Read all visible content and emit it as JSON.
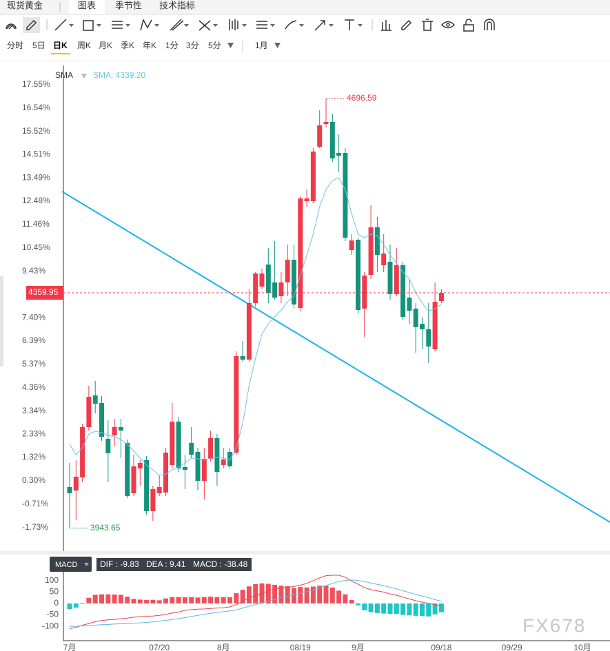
{
  "header": {
    "symbol": "现货黄金",
    "tabs": [
      "图表",
      "季节性",
      "技术指标"
    ]
  },
  "periods": [
    "分时",
    "5日",
    "日K",
    "周K",
    "月K",
    "季K",
    "年K",
    "1分",
    "3分",
    "5分"
  ],
  "range": "1月",
  "watermark": "FX678",
  "chart_data": [
    {
      "type": "candlestick",
      "categories": [
        "7月",
        null,
        null,
        null,
        null,
        null,
        null,
        null,
        null,
        null,
        null,
        null,
        null,
        null,
        "07/20",
        null,
        null,
        null,
        null,
        null,
        null,
        null,
        null,
        null,
        "8月",
        null,
        null,
        null,
        null,
        null,
        null,
        null,
        null,
        null,
        null,
        null,
        "08/19",
        null,
        null,
        null,
        null,
        null,
        null,
        null,
        null,
        "9月",
        null,
        null,
        null,
        null,
        null,
        null,
        null,
        null,
        null,
        null,
        null,
        null,
        "09/18",
        null,
        null,
        null,
        null,
        null,
        null,
        null,
        null,
        null,
        null,
        "09/29",
        null,
        null,
        null,
        null,
        null,
        null,
        null,
        null,
        null,
        null,
        "10月"
      ],
      "open": [
        0.03,
        -0.12,
        0.45,
        2.64,
        4.02,
        3.69,
        2.13,
        2.28,
        2.64,
        1.95,
        -0.24,
        0.84,
        1.2,
        -1.02,
        -0.24,
        -0.21,
        0.99,
        2.88,
        0.9,
        1.95,
        1.56,
        0.3,
        1.26,
        2.16,
        0.99,
        1.56,
        1.53,
        5.73,
        5.58,
        8.04,
        8.76,
        9.72,
        8.94,
        8.34,
        8.94,
        9.93,
        7.83,
        12.48,
        12.48,
        14.85,
        15.84,
        15.93,
        14.58,
        14.58,
        10.35,
        10.8,
        7.8,
        9.27,
        11.34,
        9.69,
        9.84,
        8.43,
        9.69,
        8.28,
        7.8,
        7.14,
        6.9,
        6.03,
        8.13,
        null,
        null,
        null,
        null,
        null,
        null,
        null,
        null,
        null,
        null,
        null,
        null,
        null,
        null,
        null,
        null,
        null,
        null,
        null,
        null,
        null,
        null
      ],
      "high": [
        1.08,
        1.2,
        2.79,
        4.44,
        4.65,
        3.99,
        2.94,
        3.0,
        3.0,
        2.1,
        1.44,
        1.2,
        1.38,
        0.09,
        0.54,
        1.74,
        3.69,
        3.09,
        1.44,
        2.64,
        1.74,
        1.74,
        2.49,
        2.34,
        1.74,
        1.74,
        5.94,
        6.39,
        8.64,
        9.39,
        9.54,
        10.44,
        10.74,
        9.39,
        10.59,
        10.59,
        12.69,
        12.99,
        14.79,
        16.44,
        16.95,
        16.29,
        15.39,
        14.79,
        11.04,
        10.89,
        9.39,
        12.3,
        11.79,
        11.04,
        10.59,
        10.44,
        9.84,
        9.09,
        8.04,
        7.44,
        8.04,
        8.94,
        8.64,
        null,
        null,
        null,
        null,
        null,
        null,
        null,
        null,
        null,
        null,
        null,
        null,
        null,
        null,
        null,
        null,
        null,
        null,
        null,
        null,
        null,
        null
      ],
      "low": [
        -1.76,
        -1.41,
        0.24,
        2.49,
        3.24,
        2.04,
        0.24,
        1.8,
        1.29,
        -0.45,
        -0.36,
        0.09,
        -1.17,
        -1.44,
        -0.36,
        -0.36,
        0.84,
        0.69,
        -0.06,
        1.29,
        -0.12,
        -0.51,
        1.14,
        0.09,
        0.84,
        0.84,
        1.44,
        5.49,
        5.49,
        7.89,
        8.64,
        8.04,
        8.19,
        8.04,
        8.34,
        7.8,
        7.68,
        12.24,
        12.39,
        14.79,
        15.69,
        14.19,
        13.74,
        10.74,
        10.14,
        7.59,
        6.54,
        9.09,
        9.39,
        9.39,
        8.19,
        8.34,
        7.29,
        7.14,
        5.88,
        6.03,
        5.43,
        5.94,
        8.04,
        null,
        null,
        null,
        null,
        null,
        null,
        null,
        null,
        null,
        null,
        null,
        null,
        null,
        null,
        null,
        null,
        null,
        null,
        null,
        null,
        null,
        null
      ],
      "close": [
        -0.24,
        0.48,
        2.64,
        3.96,
        3.66,
        2.22,
        1.5,
        2.64,
        2.49,
        -0.36,
        0.93,
        1.08,
        -1.02,
        -0.06,
        0.03,
        1.53,
        2.88,
        0.84,
        0.78,
        1.44,
        0.3,
        1.26,
        2.16,
        0.69,
        1.23,
        0.93,
        5.73,
        5.58,
        8.04,
        9.33,
        9.33,
        8.49,
        8.28,
        8.94,
        9.93,
        7.98,
        12.6,
        12.6,
        14.64,
        15.78,
        15.93,
        14.34,
        14.46,
        10.89,
        10.77,
        7.74,
        9.24,
        11.34,
        10.14,
        10.2,
        8.43,
        9.69,
        7.44,
        7.71,
        6.99,
        6.9,
        6.15,
        8.1,
        8.49,
        null,
        null,
        null,
        null,
        null,
        null,
        null,
        null,
        null,
        null,
        null,
        null,
        null,
        null,
        null,
        null,
        null,
        null,
        null,
        null,
        null,
        null
      ],
      "up_color": "#f0394a",
      "down_color": "#14937c",
      "series": [
        {
          "name": "SMA",
          "color": "#6cc3ec",
          "values": [
            1.89,
            1.44,
            1.74,
            2.34,
            2.46,
            2.4,
            2.28,
            2.22,
            2.1,
            1.89,
            1.59,
            1.29,
            0.99,
            0.78,
            0.54,
            0.6,
            0.78,
            0.9,
            1.08,
            1.29,
            1.26,
            1.2,
            1.29,
            1.32,
            1.29,
            1.2,
            1.74,
            2.79,
            4.44,
            5.64,
            6.69,
            7.14,
            7.44,
            7.74,
            8.1,
            8.34,
            9.24,
            10.14,
            11.04,
            12.24,
            12.99,
            13.38,
            13.5,
            12.99,
            11.94,
            11.04,
            10.89,
            11.04,
            10.98,
            10.59,
            10.14,
            9.78,
            9.39,
            9.09,
            8.49,
            8.04,
            7.68,
            7.8,
            7.98,
            null,
            null,
            null,
            null,
            null,
            null,
            null,
            null,
            null,
            null,
            null,
            null,
            null,
            null,
            null,
            null,
            null,
            null,
            null,
            null,
            null,
            null
          ]
        }
      ],
      "sma_readout": "SMA: 4339.20",
      "high_label": "4696.59",
      "low_label": "3943.65",
      "last_price_label": "4359.95",
      "ylim": [
        -2.76,
        18.39
      ],
      "yticks": [
        {
          "value": 17.55,
          "label": "17.55%"
        },
        {
          "value": 16.54,
          "label": "16.54%"
        },
        {
          "value": 15.52,
          "label": "15.52%"
        },
        {
          "value": 14.51,
          "label": "14.51%"
        },
        {
          "value": 13.49,
          "label": "13.49%"
        },
        {
          "value": 12.48,
          "label": "12.48%"
        },
        {
          "value": 11.46,
          "label": "11.46%"
        },
        {
          "value": 10.45,
          "label": "10.45%"
        },
        {
          "value": 9.43,
          "label": "9.43%"
        },
        {
          "value": 7.4,
          "label": "7.40%"
        },
        {
          "value": 6.39,
          "label": "6.39%"
        },
        {
          "value": 5.37,
          "label": "5.37%"
        },
        {
          "value": 4.36,
          "label": "4.36%"
        },
        {
          "value": 3.34,
          "label": "3.34%"
        },
        {
          "value": 2.33,
          "label": "2.33%"
        },
        {
          "value": 1.32,
          "label": "1.32%"
        },
        {
          "value": 0.3,
          "label": "0.30%"
        },
        {
          "value": -0.71,
          "label": "-0.71%"
        },
        {
          "value": -1.73,
          "label": "-1.73%"
        }
      ]
    },
    {
      "type": "macd",
      "indicator": "MACD",
      "readout": [
        "DIF : -9.83",
        "DEA : 9.41",
        "MACD : -38.48"
      ],
      "values": [
        -25,
        -18,
        -3,
        25,
        38,
        40,
        40,
        39,
        38,
        30,
        20,
        17,
        15,
        16,
        14,
        22,
        28,
        28,
        27,
        28,
        26,
        28,
        30,
        28,
        28,
        27,
        45,
        60,
        75,
        85,
        88,
        86,
        82,
        78,
        76,
        68,
        72,
        70,
        74,
        78,
        78,
        70,
        56,
        40,
        15,
        -8,
        -30,
        -38,
        -42,
        -44,
        -46,
        -46,
        -50,
        -52,
        -54,
        -55,
        -57,
        -48,
        -38.48
      ],
      "up_color": "#f0505c",
      "down_color": "#1fc6c8",
      "series": [
        {
          "color": "#e8434f",
          "values": [
            -110,
            -105,
            -95,
            -88,
            -80,
            -75,
            -72,
            -70,
            -67,
            -64,
            -60,
            -58,
            -56,
            -55,
            -52,
            -48,
            -42,
            -38,
            -30,
            -27,
            -25,
            -24,
            -22,
            -20,
            -19,
            -15,
            -5,
            10,
            25,
            35,
            45,
            55,
            63,
            68,
            70,
            75,
            80,
            88,
            100,
            112,
            122,
            124,
            124,
            115,
            98,
            85,
            70,
            60,
            55,
            50,
            42,
            36,
            28,
            20,
            12,
            6,
            0,
            -5,
            -9.83
          ]
        },
        {
          "color": "#5bb8e8",
          "values": [
            -100,
            -100,
            -98,
            -97,
            -95,
            -93,
            -92,
            -90,
            -89,
            -88,
            -87,
            -85,
            -83,
            -81,
            -78,
            -74,
            -70,
            -66,
            -62,
            -57,
            -52,
            -47,
            -43,
            -40,
            -36,
            -33,
            -28,
            -20,
            -12,
            -5,
            3,
            10,
            18,
            25,
            32,
            38,
            44,
            52,
            60,
            68,
            78,
            88,
            96,
            101,
            103,
            101,
            96,
            90,
            84,
            78,
            71,
            64,
            56,
            48,
            40,
            33,
            25,
            17,
            9.41
          ]
        }
      ],
      "ylim": [
        -148,
        139
      ],
      "yticks": [
        100,
        50,
        0,
        -50,
        -100
      ]
    }
  ]
}
